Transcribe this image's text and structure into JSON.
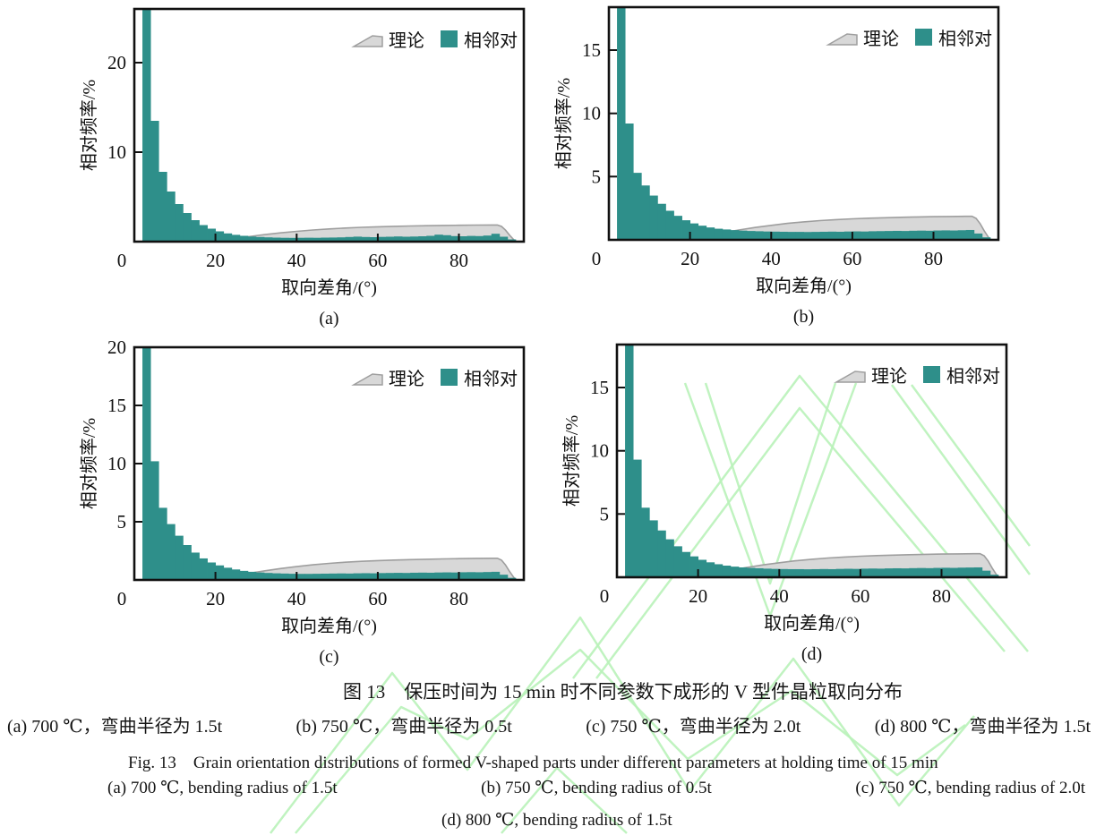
{
  "figure": {
    "title_zh": "图 13　保压时间为 15 min 时不同参数下成形的 V 型件晶粒取向分布",
    "sub_zh": [
      "(a) 700 ℃，弯曲半径为 1.5t",
      "(b) 750 ℃，弯曲半径为 0.5t",
      "(c) 750 ℃，弯曲半径为 2.0t",
      "(d) 800 ℃，弯曲半径为 1.5t"
    ],
    "title_en": "Fig. 13　Grain orientation distributions of formed V-shaped parts under different parameters at holding time of 15 min",
    "sub_en": [
      "(a) 700 ℃, bending radius of 1.5t",
      "(b) 750 ℃, bending radius of 0.5t",
      "(c) 750 ℃, bending radius of 2.0t"
    ],
    "sub_en2": "(d) 800 ℃, bending radius of 1.5t"
  },
  "legend": {
    "theory": "理论",
    "pairs": "相邻对"
  },
  "axes": {
    "x_label": "取向差角/(°)",
    "y_label": "相对频率/%",
    "x_ticks": [
      0,
      20,
      40,
      60,
      80
    ],
    "x_max": 96
  },
  "colors": {
    "bar": "#2e8f8a",
    "theory_fill": "#d8d8d8",
    "theory_stroke": "#9e9e9e",
    "axis": "#111111",
    "watermark": "#b9f2b9"
  },
  "theory_curve": [
    [
      14,
      0
    ],
    [
      16,
      0.05
    ],
    [
      20,
      0.15
    ],
    [
      24,
      0.33
    ],
    [
      28,
      0.55
    ],
    [
      32,
      0.78
    ],
    [
      36,
      0.98
    ],
    [
      40,
      1.15
    ],
    [
      44,
      1.3
    ],
    [
      48,
      1.42
    ],
    [
      52,
      1.52
    ],
    [
      56,
      1.6
    ],
    [
      60,
      1.66
    ],
    [
      64,
      1.71
    ],
    [
      68,
      1.75
    ],
    [
      72,
      1.78
    ],
    [
      76,
      1.81
    ],
    [
      80,
      1.83
    ],
    [
      84,
      1.85
    ],
    [
      88,
      1.86
    ],
    [
      89.5,
      1.86
    ],
    [
      90.5,
      1.7
    ],
    [
      91.5,
      1.28
    ],
    [
      92.5,
      0.72
    ],
    [
      93.5,
      0.22
    ],
    [
      94.2,
      0
    ]
  ],
  "chart_data": [
    {
      "id": "a",
      "tag": "(a)",
      "type": "bar",
      "condition": "700 ℃, bending radius 1.5t",
      "xlabel": "取向差角/(°)",
      "ylabel": "相对频率/%",
      "xlim": [
        0,
        96
      ],
      "ylim": 26,
      "y_ticks": [
        10,
        20
      ],
      "bin_start": 2,
      "bin_width": 2,
      "values": [
        27,
        13.5,
        7.8,
        5.6,
        4.2,
        3.2,
        2.4,
        1.85,
        1.45,
        1.15,
        0.92,
        0.76,
        0.65,
        0.57,
        0.52,
        0.48,
        0.45,
        0.43,
        0.42,
        0.43,
        0.44,
        0.43,
        0.45,
        0.46,
        0.48,
        0.52,
        0.56,
        0.52,
        0.5,
        0.53,
        0.55,
        0.58,
        0.55,
        0.57,
        0.6,
        0.65,
        0.78,
        0.72,
        0.62,
        0.6,
        0.64,
        0.62,
        0.68,
        0.88,
        0.55,
        0.25
      ]
    },
    {
      "id": "b",
      "tag": "(b)",
      "type": "bar",
      "condition": "750 ℃, bending radius 0.5t",
      "xlabel": "取向差角/(°)",
      "ylabel": "相对频率/%",
      "xlim": [
        0,
        96
      ],
      "ylim": 18.4,
      "y_ticks": [
        5,
        10,
        15
      ],
      "bin_start": 2,
      "bin_width": 2,
      "values": [
        19.5,
        9.2,
        5.3,
        4.3,
        3.5,
        2.85,
        2.3,
        1.9,
        1.55,
        1.3,
        1.12,
        0.98,
        0.88,
        0.82,
        0.77,
        0.73,
        0.7,
        0.68,
        0.66,
        0.65,
        0.64,
        0.63,
        0.63,
        0.62,
        0.63,
        0.64,
        0.65,
        0.64,
        0.66,
        0.67,
        0.66,
        0.68,
        0.69,
        0.7,
        0.71,
        0.7,
        0.72,
        0.73,
        0.72,
        0.74,
        0.75,
        0.74,
        0.76,
        0.78,
        0.5,
        0.2
      ]
    },
    {
      "id": "c",
      "tag": "(c)",
      "type": "bar",
      "condition": "750 ℃, bending radius 2.0t",
      "xlabel": "取向差角/(°)",
      "ylabel": "相对频率/%",
      "xlim": [
        0,
        96
      ],
      "ylim": 20,
      "y_ticks": [
        5,
        10,
        15,
        20
      ],
      "bin_start": 2,
      "bin_width": 2,
      "values": [
        22,
        10.2,
        6.2,
        4.8,
        3.8,
        3.0,
        2.35,
        1.85,
        1.5,
        1.25,
        1.05,
        0.9,
        0.78,
        0.7,
        0.64,
        0.6,
        0.57,
        0.55,
        0.53,
        0.52,
        0.52,
        0.53,
        0.54,
        0.55,
        0.56,
        0.55,
        0.57,
        0.58,
        0.57,
        0.59,
        0.6,
        0.61,
        0.6,
        0.62,
        0.63,
        0.62,
        0.64,
        0.65,
        0.64,
        0.66,
        0.67,
        0.66,
        0.68,
        0.7,
        0.45,
        0.18
      ]
    },
    {
      "id": "d",
      "tag": "(d)",
      "type": "bar",
      "condition": "800 ℃, bending radius 1.5t",
      "xlabel": "取向差角/(°)",
      "ylabel": "相对频率/%",
      "xlim": [
        0,
        96
      ],
      "ylim": 18.4,
      "y_ticks": [
        5,
        10,
        15
      ],
      "bin_start": 2,
      "bin_width": 2,
      "values": [
        19.8,
        9.3,
        5.5,
        4.5,
        3.7,
        3.0,
        2.45,
        2.0,
        1.65,
        1.38,
        1.18,
        1.03,
        0.92,
        0.84,
        0.78,
        0.74,
        0.71,
        0.68,
        0.66,
        0.65,
        0.64,
        0.64,
        0.63,
        0.64,
        0.65,
        0.64,
        0.66,
        0.67,
        0.66,
        0.68,
        0.69,
        0.68,
        0.7,
        0.71,
        0.7,
        0.72,
        0.73,
        0.72,
        0.74,
        0.75,
        0.74,
        0.76,
        0.77,
        0.78,
        0.52,
        0.2
      ]
    }
  ]
}
